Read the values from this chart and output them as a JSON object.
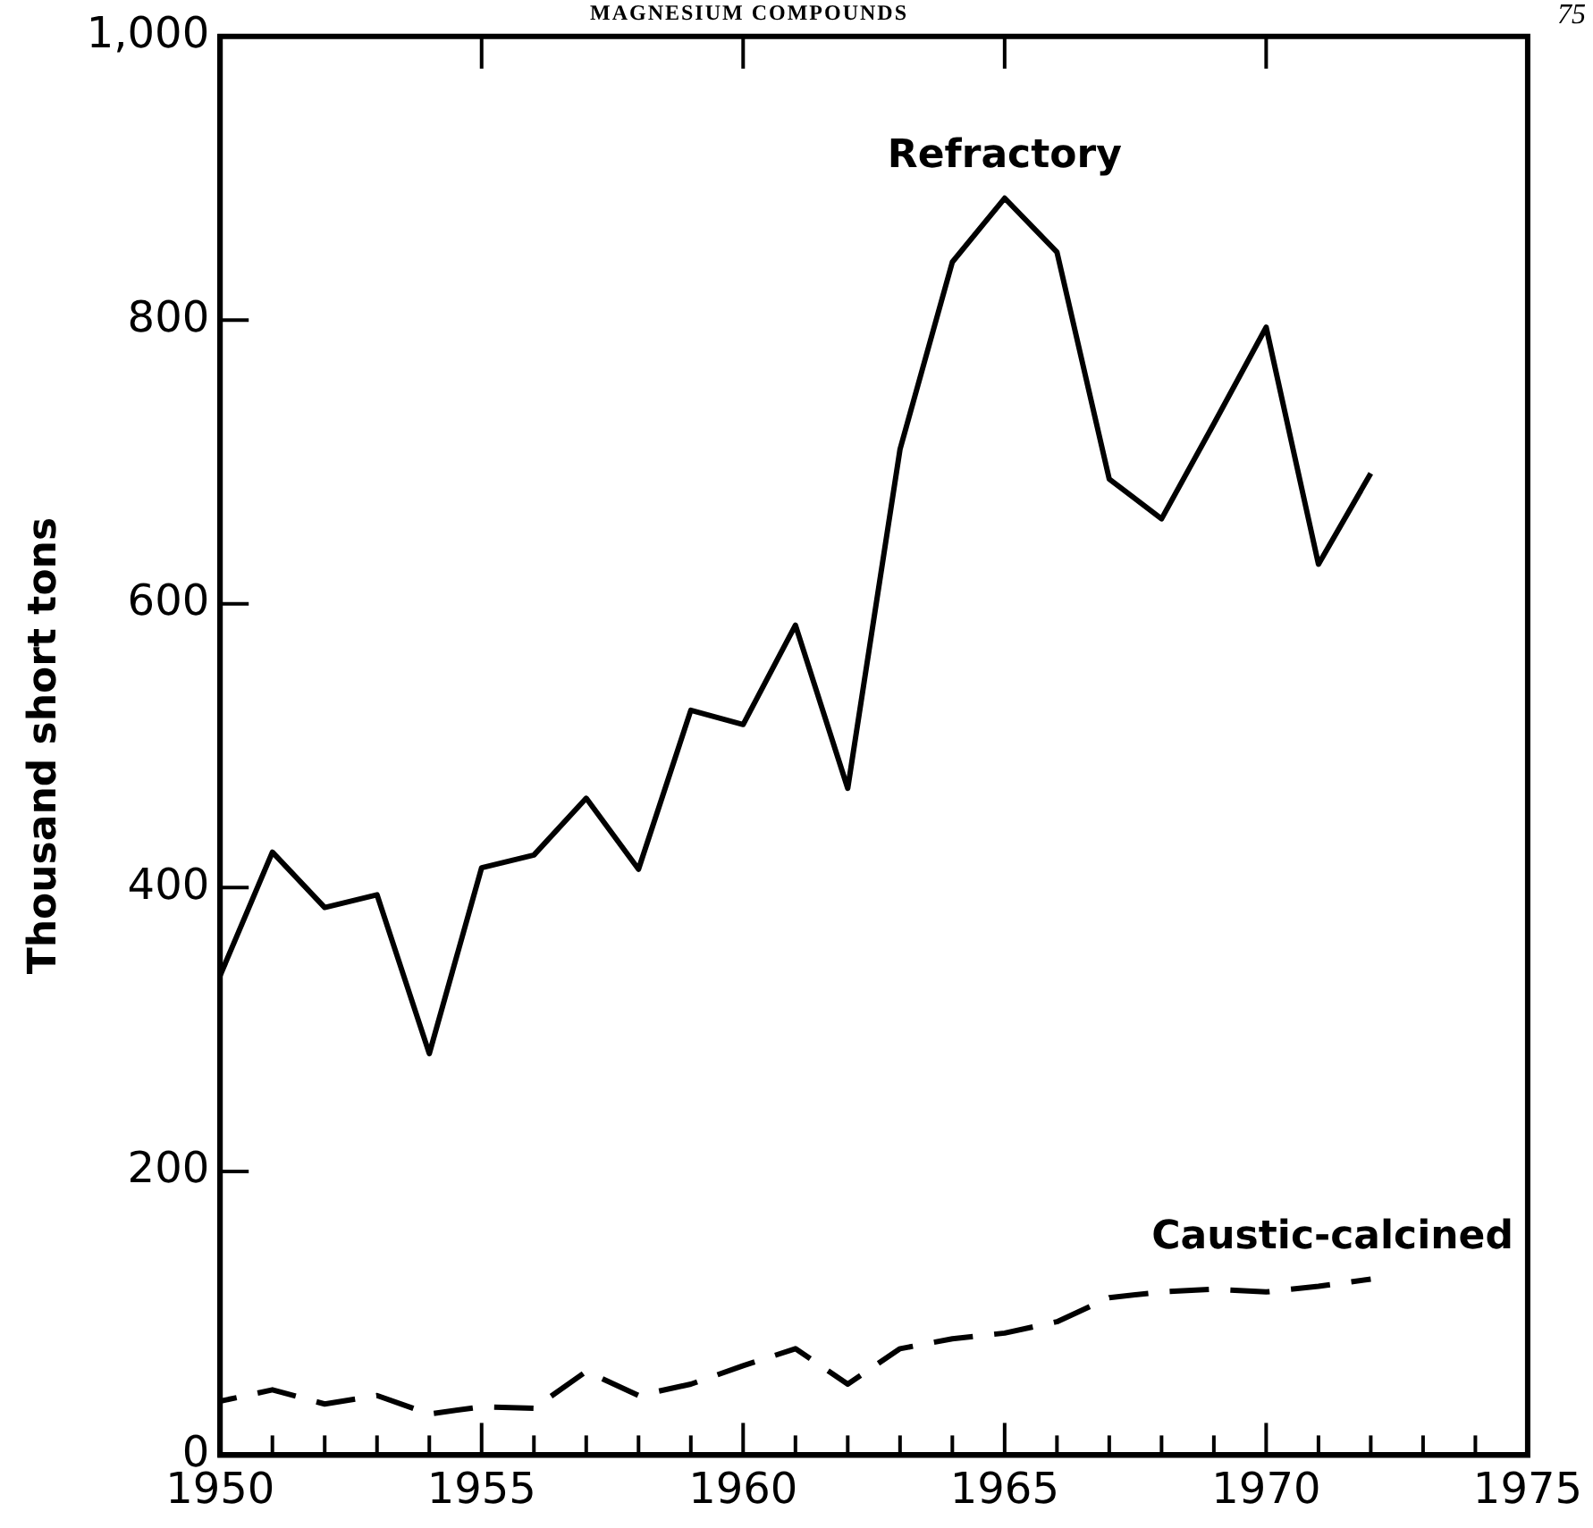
{
  "chart_data": {
    "type": "line",
    "annotations": [
      "MAGNESIUM COMPOUNDS",
      "75"
    ],
    "ylabel": "Thousand short tons",
    "x": [
      1950,
      1951,
      1952,
      1953,
      1954,
      1955,
      1956,
      1957,
      1958,
      1959,
      1960,
      1961,
      1962,
      1963,
      1964,
      1965,
      1966,
      1967,
      1968,
      1969,
      1970,
      1971,
      1972
    ],
    "series": [
      {
        "name": "Refractory",
        "color": "#000000",
        "line_style": "solid",
        "values": [
          338,
          425,
          386,
          395,
          283,
          414,
          423,
          463,
          413,
          525,
          515,
          585,
          470,
          709,
          841,
          886,
          848,
          688,
          660,
          727,
          795,
          628,
          692
        ]
      },
      {
        "name": "Caustic-calcined",
        "color": "#000000",
        "line_style": "dashed",
        "values": [
          38,
          46,
          36,
          42,
          29,
          34,
          33,
          59,
          42,
          50,
          63,
          75,
          50,
          75,
          82,
          86,
          94,
          111,
          115,
          117,
          115,
          119,
          124
        ]
      }
    ],
    "xlim": [
      1950,
      1975
    ],
    "xticks": [
      1950,
      {
        "value": 1951,
        "label": null
      },
      {
        "value": 1952,
        "label": null
      },
      {
        "value": 1953,
        "label": null
      },
      {
        "value": 1954,
        "label": null
      },
      1955,
      {
        "value": 1956,
        "label": null
      },
      {
        "value": 1957,
        "label": null
      },
      {
        "value": 1958,
        "label": null
      },
      {
        "value": 1959,
        "label": null
      },
      1960,
      {
        "value": 1961,
        "label": null
      },
      {
        "value": 1962,
        "label": null
      },
      {
        "value": 1963,
        "label": null
      },
      {
        "value": 1964,
        "label": null
      },
      1965,
      {
        "value": 1966,
        "label": null
      },
      {
        "value": 1967,
        "label": null
      },
      {
        "value": 1968,
        "label": null
      },
      {
        "value": 1969,
        "label": null
      },
      1970,
      {
        "value": 1971,
        "label": null
      },
      {
        "value": 1972,
        "label": null
      },
      {
        "value": 1973,
        "label": null
      },
      {
        "value": 1974,
        "label": null
      },
      1975
    ],
    "ylim": [
      0,
      1000
    ],
    "yticks": [
      0,
      200,
      400,
      600,
      800,
      {
        "value": 1000,
        "label": "1,000"
      }
    ],
    "grid": false,
    "legend": false,
    "marker": "none"
  }
}
